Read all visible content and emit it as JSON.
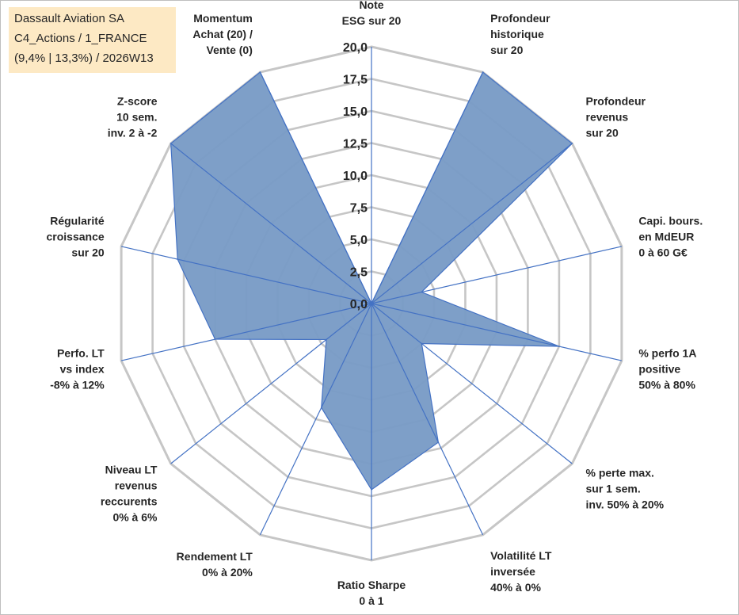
{
  "info_box": {
    "company": "Dassault Aviation SA",
    "portfolio": "C4_Actions / 1_FRANCE",
    "stats": "(9,4% | 13,3%) / 2026W13"
  },
  "colors": {
    "area_fill": "#7a9cc6",
    "series_line": "#4472c4",
    "grid": "#c6c6c6",
    "info_box_bg": "#fde9c4"
  },
  "chart_data": {
    "type": "radar",
    "title": "",
    "rmin": 0,
    "rmax": 20,
    "tick_step": 2.5,
    "tick_labels": [
      "0,0",
      "2,5",
      "5,0",
      "7,5",
      "10,0",
      "12,5",
      "15,0",
      "17,5",
      "20,0"
    ],
    "axes": [
      [
        "Note",
        "ESG sur 20"
      ],
      [
        "Profondeur",
        "historique",
        "sur 20"
      ],
      [
        "Profondeur",
        "revenus",
        "sur 20"
      ],
      [
        "Capi. bours.",
        "en MdEUR",
        "0 à 60 G€"
      ],
      [
        "% perfo 1A",
        "positive",
        "50% à 80%"
      ],
      [
        "% perte max.",
        "sur 1 sem.",
        "inv. 50% à 20%"
      ],
      [
        "Volatilité LT",
        "inversée",
        "40% à 0%"
      ],
      [
        "Ratio Sharpe",
        "0 à 1"
      ],
      [
        "Rendement LT",
        "0% à 20%"
      ],
      [
        "Niveau LT",
        "revenus",
        "reccurents",
        "0% à 6%"
      ],
      [
        "Perfo. LT",
        "vs index",
        "-8% à 12%"
      ],
      [
        "Régularité",
        "croissance",
        "sur 20"
      ],
      [
        "Z-score",
        "10 sem.",
        "inv. 2 à -2"
      ],
      [
        "Momentum",
        "Achat (20) /",
        "Vente (0)"
      ]
    ],
    "series": [
      {
        "name": "Dassault Aviation SA",
        "values": [
          0,
          20,
          20,
          4,
          15,
          5,
          12,
          14.5,
          9,
          4.5,
          12.5,
          15.5,
          20,
          20
        ]
      }
    ]
  }
}
